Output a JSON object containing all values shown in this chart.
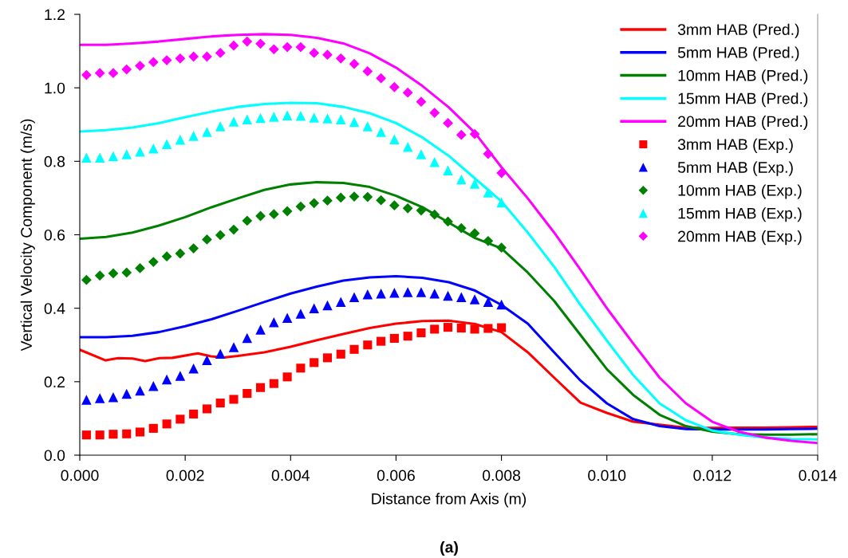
{
  "chart_data": {
    "type": "line",
    "xlabel": "Distance from Axis (m)",
    "ylabel": "Vertical Velocity Component (m/s)",
    "xlim": [
      0,
      0.014
    ],
    "ylim": [
      0,
      1.2
    ],
    "xticks": [
      {
        "value": 0,
        "label": "0.000"
      },
      {
        "value": 0.002,
        "label": "0.002"
      },
      {
        "value": 0.004,
        "label": "0.004"
      },
      {
        "value": 0.006,
        "label": "0.006"
      },
      {
        "value": 0.008,
        "label": "0.008"
      },
      {
        "value": 0.01,
        "label": "0.010"
      },
      {
        "value": 0.012,
        "label": "0.012"
      },
      {
        "value": 0.014,
        "label": "0.014"
      }
    ],
    "yticks": [
      {
        "value": 0,
        "label": "0.0"
      },
      {
        "value": 0.2,
        "label": "0.2"
      },
      {
        "value": 0.4,
        "label": "0.4"
      },
      {
        "value": 0.6,
        "label": "0.6"
      },
      {
        "value": 0.8,
        "label": "0.8"
      },
      {
        "value": 1.0,
        "label": "1.0"
      },
      {
        "value": 1.2,
        "label": "1.2"
      }
    ],
    "grid": false,
    "legend": "top right",
    "annotations": [
      "(a)"
    ],
    "series": [
      {
        "name": "3mm HAB (Pred.)",
        "marker": "none",
        "color": "#ff0000",
        "x": [
          0,
          0.00049,
          0.00073,
          0.001,
          0.00124,
          0.00151,
          0.00176,
          0.00224,
          0.00249,
          0.00273,
          0.003,
          0.0035,
          0.004,
          0.0045,
          0.005,
          0.0055,
          0.006,
          0.0065,
          0.007,
          0.0075,
          0.008,
          0.0085,
          0.009,
          0.0095,
          0.01,
          0.0105,
          0.011,
          0.0115,
          0.012,
          0.0125,
          0.013,
          0.0135,
          0.014
        ],
        "values": [
          0.287,
          0.258,
          0.264,
          0.263,
          0.256,
          0.264,
          0.265,
          0.277,
          0.269,
          0.266,
          0.27,
          0.28,
          0.295,
          0.313,
          0.33,
          0.346,
          0.358,
          0.365,
          0.366,
          0.357,
          0.335,
          0.28,
          0.211,
          0.143,
          0.115,
          0.091,
          0.083,
          0.075,
          0.074,
          0.075,
          0.075,
          0.076,
          0.077
        ]
      },
      {
        "name": "5mm HAB (Pred.)",
        "marker": "none",
        "color": "#0000ff",
        "x": [
          0,
          0.0005,
          0.001,
          0.0015,
          0.002,
          0.0025,
          0.003,
          0.0035,
          0.004,
          0.0045,
          0.005,
          0.0055,
          0.006,
          0.0065,
          0.007,
          0.0075,
          0.008,
          0.0085,
          0.009,
          0.0095,
          0.01,
          0.0105,
          0.011,
          0.0115,
          0.012,
          0.0125,
          0.013,
          0.0135,
          0.014
        ],
        "values": [
          0.321,
          0.321,
          0.325,
          0.335,
          0.351,
          0.37,
          0.393,
          0.417,
          0.44,
          0.459,
          0.475,
          0.484,
          0.487,
          0.483,
          0.471,
          0.448,
          0.409,
          0.358,
          0.28,
          0.203,
          0.141,
          0.098,
          0.079,
          0.071,
          0.07,
          0.07,
          0.07,
          0.071,
          0.072
        ]
      },
      {
        "name": "10mm HAB (Pred.)",
        "marker": "none",
        "color": "#008000",
        "x": [
          0,
          0.0005,
          0.001,
          0.0015,
          0.002,
          0.0025,
          0.003,
          0.0035,
          0.004,
          0.0045,
          0.005,
          0.0055,
          0.006,
          0.0065,
          0.007,
          0.0075,
          0.008,
          0.0085,
          0.009,
          0.0095,
          0.01,
          0.0105,
          0.011,
          0.0115,
          0.012,
          0.0125,
          0.013,
          0.0135,
          0.014
        ],
        "values": [
          0.589,
          0.594,
          0.606,
          0.625,
          0.648,
          0.675,
          0.699,
          0.722,
          0.737,
          0.743,
          0.741,
          0.73,
          0.706,
          0.675,
          0.633,
          0.591,
          0.563,
          0.497,
          0.42,
          0.327,
          0.234,
          0.164,
          0.11,
          0.079,
          0.064,
          0.057,
          0.056,
          0.056,
          0.057
        ]
      },
      {
        "name": "15mm HAB (Pred.)",
        "marker": "none",
        "color": "#00ffff",
        "x": [
          0,
          0.0005,
          0.001,
          0.0015,
          0.002,
          0.0025,
          0.003,
          0.0035,
          0.004,
          0.0045,
          0.005,
          0.0055,
          0.006,
          0.0065,
          0.007,
          0.0075,
          0.008,
          0.0085,
          0.009,
          0.0095,
          0.01,
          0.0105,
          0.011,
          0.0115,
          0.012,
          0.0125,
          0.013,
          0.0135,
          0.014
        ],
        "values": [
          0.881,
          0.885,
          0.892,
          0.904,
          0.92,
          0.935,
          0.948,
          0.956,
          0.959,
          0.958,
          0.948,
          0.931,
          0.904,
          0.865,
          0.815,
          0.753,
          0.691,
          0.606,
          0.513,
          0.409,
          0.312,
          0.218,
          0.141,
          0.095,
          0.067,
          0.056,
          0.048,
          0.044,
          0.043
        ]
      },
      {
        "name": "20mm HAB (Pred.)",
        "marker": "none",
        "color": "#ff00ff",
        "x": [
          0,
          0.0005,
          0.001,
          0.0015,
          0.002,
          0.0025,
          0.003,
          0.0035,
          0.004,
          0.0045,
          0.005,
          0.0055,
          0.006,
          0.0065,
          0.007,
          0.0075,
          0.008,
          0.0085,
          0.009,
          0.0095,
          0.01,
          0.0105,
          0.011,
          0.0115,
          0.012,
          0.0125,
          0.013,
          0.0135,
          0.014
        ],
        "values": [
          1.117,
          1.117,
          1.121,
          1.126,
          1.133,
          1.14,
          1.144,
          1.146,
          1.144,
          1.136,
          1.121,
          1.094,
          1.055,
          1.005,
          0.947,
          0.877,
          0.784,
          0.699,
          0.606,
          0.505,
          0.4,
          0.304,
          0.211,
          0.141,
          0.091,
          0.064,
          0.048,
          0.039,
          0.033
        ]
      },
      {
        "name": "3mm HAB (Exp.)",
        "type": "scatter",
        "marker": "square",
        "color": "#ff0000",
        "x": [
          0.000127,
          0.000381,
          0.000635,
          0.000889,
          0.001143,
          0.001397,
          0.001651,
          0.001905,
          0.002159,
          0.002413,
          0.002667,
          0.002921,
          0.003175,
          0.003429,
          0.003683,
          0.003937,
          0.004191,
          0.004445,
          0.004699,
          0.004953,
          0.005207,
          0.005461,
          0.005715,
          0.005969,
          0.006223,
          0.006477,
          0.006731,
          0.006985,
          0.007239,
          0.007493,
          0.007747,
          0.008001
        ],
        "values": [
          0.055,
          0.055,
          0.057,
          0.058,
          0.063,
          0.073,
          0.085,
          0.098,
          0.112,
          0.126,
          0.142,
          0.152,
          0.168,
          0.184,
          0.195,
          0.213,
          0.237,
          0.252,
          0.265,
          0.275,
          0.288,
          0.3,
          0.31,
          0.318,
          0.324,
          0.333,
          0.343,
          0.348,
          0.346,
          0.343,
          0.345,
          0.347
        ]
      },
      {
        "name": "5mm HAB (Exp.)",
        "type": "scatter",
        "marker": "triangle",
        "color": "#0000ff",
        "x": [
          0.000127,
          0.000381,
          0.000635,
          0.000889,
          0.001143,
          0.001397,
          0.001651,
          0.001905,
          0.002159,
          0.002413,
          0.002667,
          0.002921,
          0.003175,
          0.003429,
          0.003683,
          0.003937,
          0.004191,
          0.004445,
          0.004699,
          0.004953,
          0.005207,
          0.005461,
          0.005715,
          0.005969,
          0.006223,
          0.006477,
          0.006731,
          0.006985,
          0.007239,
          0.007493,
          0.007747,
          0.008001
        ],
        "values": [
          0.151,
          0.155,
          0.158,
          0.167,
          0.176,
          0.188,
          0.206,
          0.216,
          0.236,
          0.259,
          0.276,
          0.294,
          0.319,
          0.342,
          0.362,
          0.374,
          0.385,
          0.4,
          0.408,
          0.417,
          0.43,
          0.438,
          0.44,
          0.442,
          0.444,
          0.444,
          0.44,
          0.434,
          0.43,
          0.424,
          0.417,
          0.41
        ]
      },
      {
        "name": "10mm HAB (Exp.)",
        "type": "scatter",
        "marker": "diamond",
        "color": "#008000",
        "x": [
          0.000127,
          0.000381,
          0.000635,
          0.000889,
          0.001143,
          0.001397,
          0.001651,
          0.001905,
          0.002159,
          0.002413,
          0.002667,
          0.002921,
          0.003175,
          0.003429,
          0.003683,
          0.003937,
          0.004191,
          0.004445,
          0.004699,
          0.004953,
          0.005207,
          0.005461,
          0.005715,
          0.005969,
          0.006223,
          0.006477,
          0.006731,
          0.006985,
          0.007239,
          0.007493,
          0.007747,
          0.008001
        ],
        "values": [
          0.477,
          0.489,
          0.495,
          0.497,
          0.509,
          0.526,
          0.541,
          0.549,
          0.563,
          0.587,
          0.599,
          0.614,
          0.638,
          0.651,
          0.656,
          0.664,
          0.677,
          0.686,
          0.693,
          0.701,
          0.704,
          0.703,
          0.694,
          0.68,
          0.672,
          0.666,
          0.655,
          0.636,
          0.618,
          0.604,
          0.583,
          0.565
        ]
      },
      {
        "name": "15mm HAB (Exp.)",
        "type": "scatter",
        "marker": "triangle",
        "color": "#00ffff",
        "x": [
          0.000127,
          0.000381,
          0.000635,
          0.000889,
          0.001143,
          0.001397,
          0.001651,
          0.001905,
          0.002159,
          0.002413,
          0.002667,
          0.002921,
          0.003175,
          0.003429,
          0.003683,
          0.003937,
          0.004191,
          0.004445,
          0.004699,
          0.004953,
          0.005207,
          0.005461,
          0.005715,
          0.005969,
          0.006223,
          0.006477,
          0.006731,
          0.006985,
          0.007239,
          0.007493,
          0.007747,
          0.008001
        ],
        "values": [
          0.81,
          0.81,
          0.814,
          0.819,
          0.826,
          0.835,
          0.847,
          0.859,
          0.869,
          0.88,
          0.895,
          0.908,
          0.914,
          0.918,
          0.921,
          0.925,
          0.924,
          0.919,
          0.917,
          0.914,
          0.907,
          0.895,
          0.88,
          0.86,
          0.839,
          0.819,
          0.798,
          0.775,
          0.751,
          0.739,
          0.715,
          0.688
        ]
      },
      {
        "name": "20mm HAB (Exp.)",
        "type": "scatter",
        "marker": "diamond",
        "color": "#ff00ff",
        "x": [
          0.000127,
          0.000381,
          0.000635,
          0.000889,
          0.001143,
          0.001397,
          0.001651,
          0.001905,
          0.002159,
          0.002413,
          0.002667,
          0.002921,
          0.003175,
          0.003429,
          0.003683,
          0.003937,
          0.004191,
          0.004445,
          0.004699,
          0.004953,
          0.005207,
          0.005461,
          0.005715,
          0.005969,
          0.006223,
          0.006477,
          0.006731,
          0.006985,
          0.007239,
          0.007493,
          0.007747,
          0.008001
        ],
        "values": [
          1.035,
          1.04,
          1.04,
          1.05,
          1.06,
          1.07,
          1.075,
          1.08,
          1.085,
          1.085,
          1.095,
          1.115,
          1.126,
          1.12,
          1.105,
          1.111,
          1.111,
          1.095,
          1.09,
          1.08,
          1.065,
          1.045,
          1.026,
          1.002,
          0.987,
          0.962,
          0.932,
          0.904,
          0.872,
          0.874,
          0.82,
          0.768
        ]
      }
    ]
  }
}
